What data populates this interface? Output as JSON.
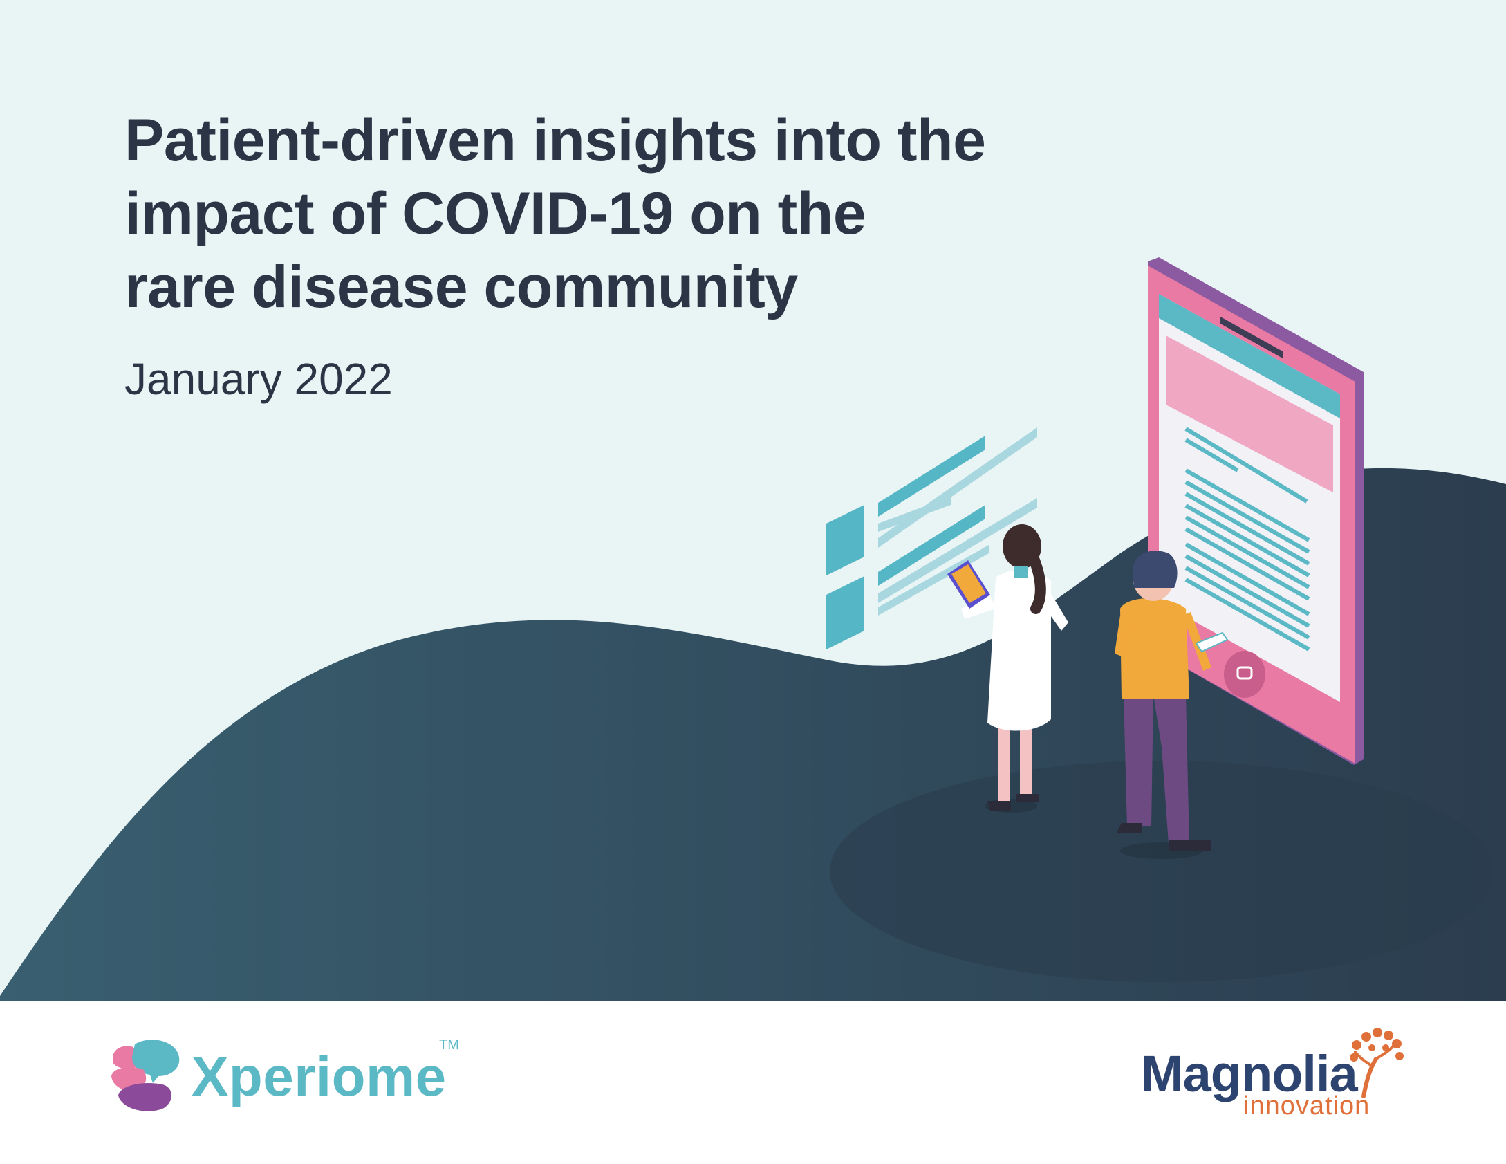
{
  "title_lines": [
    "Patient-driven insights into the",
    "impact of COVID-19 on the",
    "rare disease community"
  ],
  "date": "January 2022",
  "logos": {
    "xperiome": {
      "name": "Xperiome",
      "trademark": "TM"
    },
    "magnolia": {
      "name": "Magnolia",
      "subtitle": "innovation"
    }
  },
  "colors": {
    "background": "#e9f4f5",
    "wave": "#2f4b5c",
    "title": "#2b3546",
    "xperiome_teal": "#5bb8c5",
    "magnolia_navy": "#2e4470",
    "magnolia_orange": "#e0703a",
    "tablet_pink": "#e87aa3"
  }
}
